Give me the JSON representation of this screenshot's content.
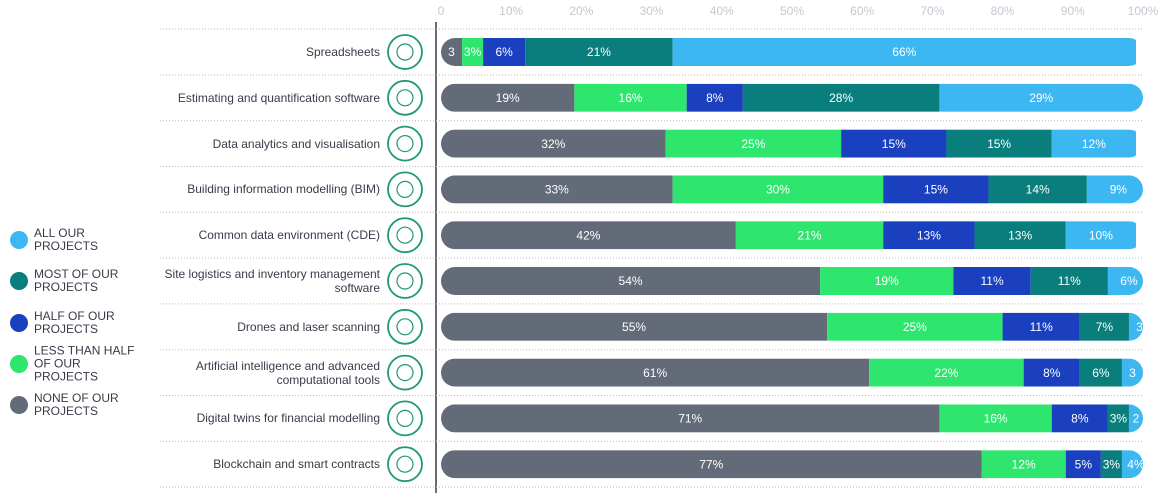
{
  "chart_data": {
    "type": "stacked-bar",
    "orientation": "horizontal",
    "categories": [
      "Spreadsheets",
      "Estimating and quantification software",
      "Data analytics and visualisation",
      "Building information modelling (BIM)",
      "Common data environment (CDE)",
      "Site logistics and inventory management software",
      "Drones and laser scanning",
      "Artificial intelligence and advanced computational tools",
      "Digital twins for financial modelling",
      "Blockchain and smart contracts"
    ],
    "series": [
      {
        "name": "NONE OF OUR PROJECTS",
        "color": "#636b78",
        "values": [
          3,
          19,
          32,
          33,
          42,
          54,
          55,
          61,
          71,
          77
        ],
        "value_labels": [
          "3",
          "19%",
          "32%",
          "33%",
          "42%",
          "54%",
          "55%",
          "61%",
          "71%",
          "77%"
        ]
      },
      {
        "name": "LESS THAN HALF OF OUR PROJECTS",
        "color": "#2ee66e",
        "values": [
          3,
          16,
          25,
          30,
          21,
          19,
          25,
          22,
          16,
          12
        ],
        "value_labels": [
          "3%",
          "16%",
          "25%",
          "30%",
          "21%",
          "19%",
          "25%",
          "22%",
          "16%",
          "12%"
        ]
      },
      {
        "name": "HALF OF OUR PROJECTS",
        "color": "#1a3fbf",
        "values": [
          6,
          8,
          15,
          15,
          13,
          11,
          11,
          8,
          8,
          5
        ],
        "value_labels": [
          "6%",
          "8%",
          "15%",
          "15%",
          "13%",
          "11%",
          "11%",
          "8%",
          "8%",
          "5%"
        ]
      },
      {
        "name": "MOST OF OUR PROJECTS",
        "color": "#0a7d7d",
        "values": [
          21,
          28,
          15,
          14,
          13,
          11,
          7,
          6,
          3,
          3
        ],
        "value_labels": [
          "21%",
          "28%",
          "15%",
          "14%",
          "13%",
          "11%",
          "7%",
          "6%",
          "3%",
          "3%"
        ]
      },
      {
        "name": "ALL OUR PROJECTS",
        "color": "#3db7f2",
        "values": [
          66,
          29,
          12,
          9,
          10,
          6,
          3,
          3,
          2,
          4
        ],
        "value_labels": [
          "66%",
          "29%",
          "12%",
          "9%",
          "10%",
          "6%",
          "3",
          "3",
          "2",
          "4%"
        ]
      }
    ],
    "xlim": [
      0,
      100
    ],
    "xticks": [
      0,
      {
        "value": 10,
        "label": "10%"
      },
      {
        "value": 20,
        "label": "20%"
      },
      {
        "value": 30,
        "label": "30%"
      },
      {
        "value": 40,
        "label": "40%"
      },
      {
        "value": 50,
        "label": "50%"
      },
      {
        "value": 60,
        "label": "60%"
      },
      {
        "value": 70,
        "label": "70%"
      },
      {
        "value": 80,
        "label": "80%"
      },
      {
        "value": 90,
        "label": "90%"
      },
      {
        "value": 100,
        "label": "100%"
      }
    ],
    "legend": "left"
  }
}
